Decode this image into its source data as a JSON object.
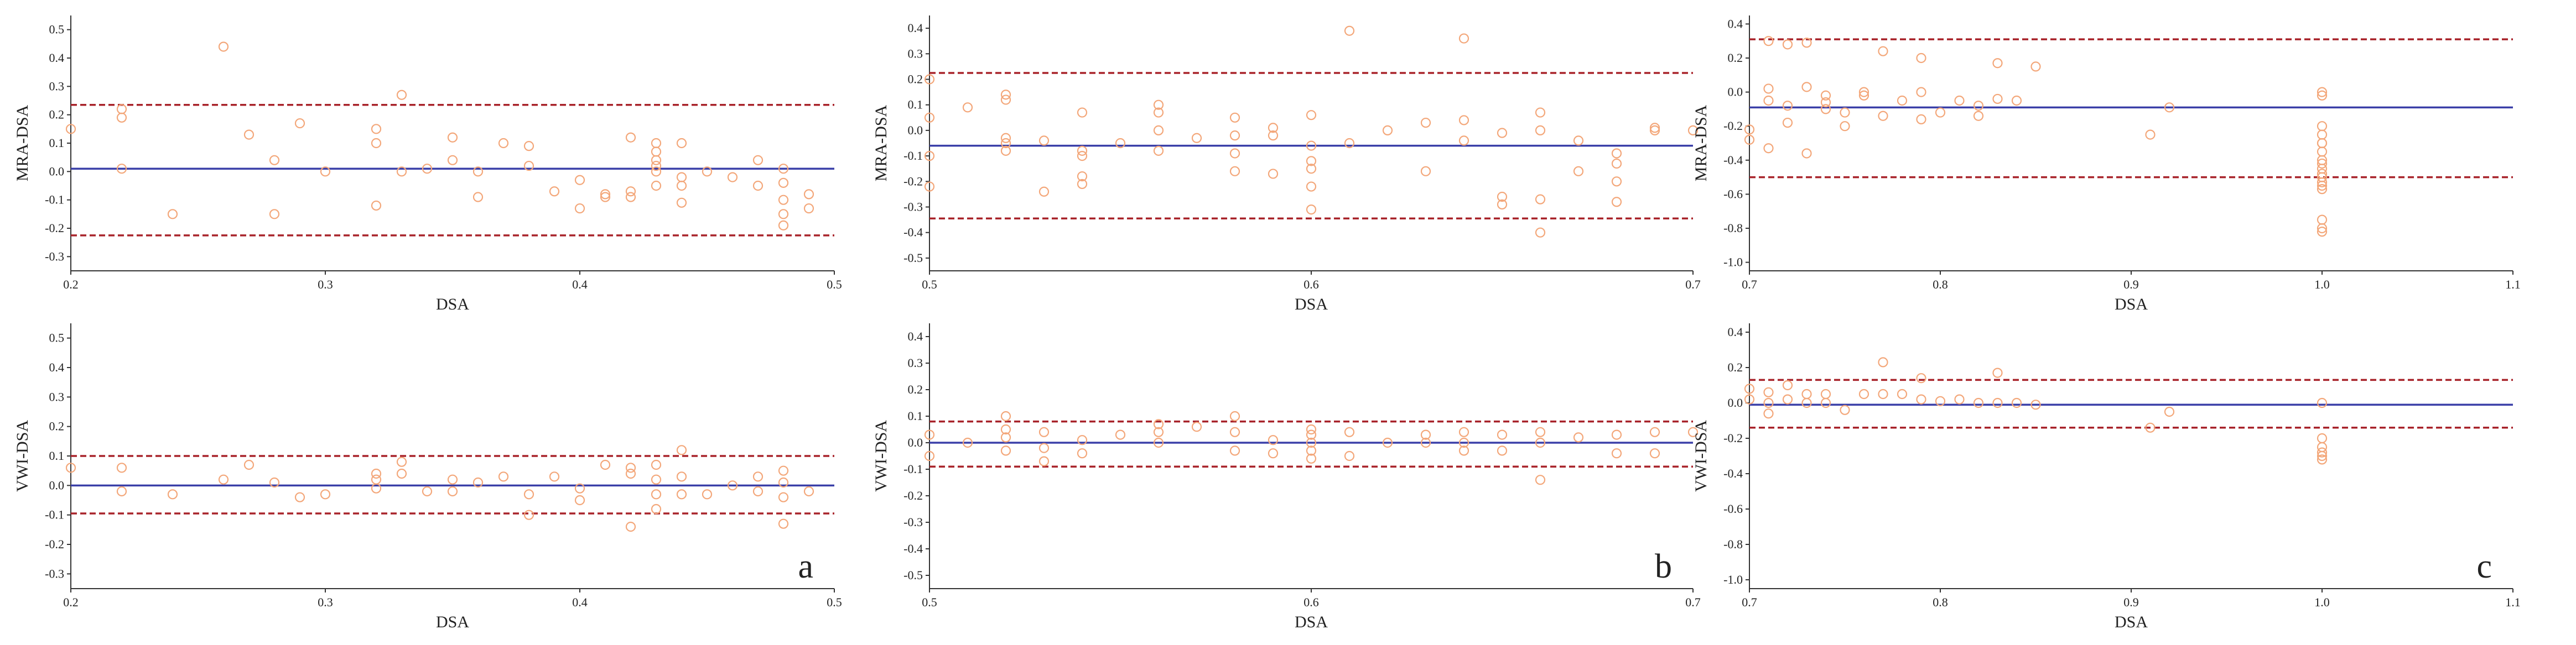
{
  "colors": {
    "mean_line": "#3a3fa8",
    "limit_line": "#a8232a",
    "point": "#f3a77a",
    "axis": "#333333"
  },
  "chart_data": [
    {
      "id": "a-top",
      "type": "scatter",
      "panel_label": "",
      "xlabel": "DSA",
      "ylabel": "MRA-DSA",
      "xlim": [
        0.2,
        0.5
      ],
      "ylim": [
        -0.35,
        0.55
      ],
      "x_ticks": [
        0.2,
        0.3,
        0.4,
        0.5
      ],
      "x_tick_labels": [
        "0.2",
        "0.3",
        "0.4",
        "0.5"
      ],
      "y_ticks": [
        -0.3,
        -0.2,
        -0.1,
        0.0,
        0.1,
        0.2,
        0.3,
        0.4,
        0.5
      ],
      "y_tick_labels": [
        "-0.3",
        "-0.2",
        "-0.1",
        "0.0",
        "0.1",
        "0.2",
        "0.3",
        "0.4",
        "0.5"
      ],
      "mean": 0.01,
      "upper_limit": 0.235,
      "lower_limit": -0.225,
      "x": [
        0.2,
        0.22,
        0.22,
        0.22,
        0.24,
        0.26,
        0.27,
        0.28,
        0.28,
        0.29,
        0.3,
        0.32,
        0.32,
        0.32,
        0.33,
        0.33,
        0.34,
        0.35,
        0.35,
        0.36,
        0.36,
        0.37,
        0.38,
        0.38,
        0.39,
        0.4,
        0.4,
        0.41,
        0.41,
        0.42,
        0.42,
        0.42,
        0.43,
        0.43,
        0.43,
        0.43,
        0.43,
        0.43,
        0.44,
        0.44,
        0.44,
        0.44,
        0.45,
        0.46,
        0.47,
        0.47,
        0.48,
        0.48,
        0.48,
        0.48,
        0.48,
        0.49,
        0.49
      ],
      "y": [
        0.15,
        0.19,
        0.22,
        0.01,
        -0.15,
        0.44,
        0.13,
        0.04,
        -0.15,
        0.17,
        0.0,
        0.15,
        0.1,
        -0.12,
        0.27,
        0.0,
        0.01,
        0.12,
        0.04,
        0.0,
        -0.09,
        0.1,
        0.09,
        0.02,
        -0.07,
        -0.03,
        -0.13,
        -0.09,
        -0.08,
        0.12,
        -0.07,
        -0.09,
        0.1,
        0.07,
        0.04,
        0.02,
        0.0,
        -0.05,
        0.1,
        -0.02,
        -0.05,
        -0.11,
        0.0,
        -0.02,
        0.04,
        -0.05,
        0.01,
        -0.04,
        -0.1,
        -0.15,
        -0.19,
        -0.08,
        -0.13
      ]
    },
    {
      "id": "b-top",
      "type": "scatter",
      "panel_label": "",
      "xlabel": "DSA",
      "ylabel": "MRA-DSA",
      "xlim": [
        0.5,
        0.7
      ],
      "ylim": [
        -0.55,
        0.45
      ],
      "x_ticks": [
        0.5,
        0.6,
        0.7
      ],
      "x_tick_labels": [
        "0.5",
        "0.6",
        "0.7"
      ],
      "y_ticks": [
        -0.5,
        -0.4,
        -0.3,
        -0.2,
        -0.1,
        0.0,
        0.1,
        0.2,
        0.3,
        0.4
      ],
      "y_tick_labels": [
        "-0.5",
        "-0.4",
        "-0.3",
        "-0.2",
        "-0.1",
        "0.0",
        "0.1",
        "0.2",
        "0.3",
        "0.4"
      ],
      "mean": -0.06,
      "upper_limit": 0.225,
      "lower_limit": -0.345,
      "x": [
        0.5,
        0.5,
        0.5,
        0.5,
        0.51,
        0.52,
        0.52,
        0.52,
        0.52,
        0.52,
        0.53,
        0.53,
        0.54,
        0.54,
        0.54,
        0.54,
        0.54,
        0.55,
        0.56,
        0.56,
        0.56,
        0.56,
        0.57,
        0.58,
        0.58,
        0.58,
        0.58,
        0.59,
        0.59,
        0.59,
        0.6,
        0.6,
        0.6,
        0.6,
        0.6,
        0.6,
        0.61,
        0.61,
        0.62,
        0.63,
        0.63,
        0.64,
        0.64,
        0.64,
        0.65,
        0.65,
        0.65,
        0.66,
        0.66,
        0.66,
        0.66,
        0.67,
        0.67,
        0.68,
        0.68,
        0.68,
        0.68,
        0.69,
        0.69,
        0.7
      ],
      "y": [
        0.2,
        0.05,
        -0.1,
        -0.22,
        0.09,
        0.14,
        0.12,
        -0.03,
        -0.05,
        -0.08,
        -0.04,
        -0.24,
        0.07,
        -0.08,
        -0.1,
        -0.18,
        -0.21,
        -0.05,
        0.1,
        0.07,
        0.0,
        -0.08,
        -0.03,
        0.05,
        -0.02,
        -0.09,
        -0.16,
        0.01,
        -0.02,
        -0.17,
        0.06,
        -0.06,
        -0.12,
        -0.15,
        -0.22,
        -0.31,
        0.39,
        -0.05,
        0.0,
        0.03,
        -0.16,
        0.36,
        0.04,
        -0.04,
        -0.01,
        -0.26,
        -0.29,
        0.07,
        0.0,
        -0.27,
        -0.4,
        -0.04,
        -0.16,
        -0.09,
        -0.2,
        -0.28,
        -0.13,
        0.01,
        0.0,
        0.0
      ]
    },
    {
      "id": "c-top",
      "type": "scatter",
      "panel_label": "",
      "xlabel": "DSA",
      "ylabel": "MRA-DSA",
      "xlim": [
        0.7,
        1.1
      ],
      "ylim": [
        -1.05,
        0.45
      ],
      "x_ticks": [
        0.7,
        0.8,
        0.9,
        1.0,
        1.1
      ],
      "x_tick_labels": [
        "0.7",
        "0.8",
        "0.9",
        "1.0",
        "1.1"
      ],
      "y_ticks": [
        -1.0,
        -0.8,
        -0.6,
        -0.4,
        -0.2,
        0.0,
        0.2,
        0.4
      ],
      "y_tick_labels": [
        "-1.0",
        "-0.8",
        "-0.6",
        "-0.4",
        "-0.2",
        "0.0",
        "0.2",
        "0.4"
      ],
      "mean": -0.09,
      "upper_limit": 0.31,
      "lower_limit": -0.5,
      "x": [
        0.7,
        0.7,
        0.71,
        0.71,
        0.71,
        0.71,
        0.72,
        0.72,
        0.72,
        0.73,
        0.73,
        0.73,
        0.74,
        0.74,
        0.74,
        0.75,
        0.75,
        0.76,
        0.76,
        0.77,
        0.77,
        0.78,
        0.79,
        0.79,
        0.79,
        0.8,
        0.81,
        0.82,
        0.82,
        0.83,
        0.83,
        0.84,
        0.85,
        0.91,
        0.92,
        1.0,
        1.0,
        1.0,
        1.0,
        1.0,
        1.0,
        1.0,
        1.0,
        1.0,
        1.0,
        1.0,
        1.0,
        1.0,
        1.0,
        1.0,
        1.0,
        1.0,
        1.0
      ],
      "y": [
        -0.22,
        -0.28,
        0.3,
        0.02,
        -0.05,
        -0.33,
        0.28,
        -0.08,
        -0.18,
        0.29,
        0.03,
        -0.36,
        -0.02,
        -0.06,
        -0.1,
        -0.12,
        -0.2,
        0.0,
        -0.02,
        0.24,
        -0.14,
        -0.05,
        0.2,
        0.0,
        -0.16,
        -0.12,
        -0.05,
        -0.08,
        -0.14,
        0.17,
        -0.04,
        -0.05,
        0.15,
        -0.25,
        -0.09,
        0.0,
        -0.02,
        -0.2,
        -0.25,
        -0.3,
        -0.35,
        -0.4,
        -0.45,
        -0.5,
        -0.53,
        -0.57,
        -0.3,
        -0.42,
        -0.48,
        -0.75,
        -0.8,
        -0.82,
        -0.55
      ]
    },
    {
      "id": "a-bottom",
      "type": "scatter",
      "panel_label": "a",
      "xlabel": "DSA",
      "ylabel": "VWI-DSA",
      "xlim": [
        0.2,
        0.5
      ],
      "ylim": [
        -0.35,
        0.55
      ],
      "x_ticks": [
        0.2,
        0.3,
        0.4,
        0.5
      ],
      "x_tick_labels": [
        "0.2",
        "0.3",
        "0.4",
        "0.5"
      ],
      "y_ticks": [
        -0.3,
        -0.2,
        -0.1,
        0.0,
        0.1,
        0.2,
        0.3,
        0.4,
        0.5
      ],
      "y_tick_labels": [
        "-0.3",
        "-0.2",
        "-0.1",
        "0.0",
        "0.1",
        "0.2",
        "0.3",
        "0.4",
        "0.5"
      ],
      "mean": 0.0,
      "upper_limit": 0.1,
      "lower_limit": -0.095,
      "x": [
        0.2,
        0.22,
        0.22,
        0.24,
        0.26,
        0.27,
        0.28,
        0.29,
        0.3,
        0.32,
        0.32,
        0.32,
        0.33,
        0.33,
        0.34,
        0.35,
        0.35,
        0.36,
        0.37,
        0.38,
        0.38,
        0.39,
        0.4,
        0.4,
        0.41,
        0.42,
        0.42,
        0.42,
        0.43,
        0.43,
        0.43,
        0.43,
        0.44,
        0.44,
        0.44,
        0.45,
        0.46,
        0.47,
        0.47,
        0.48,
        0.48,
        0.48,
        0.48,
        0.49
      ],
      "y": [
        0.06,
        0.06,
        -0.02,
        -0.03,
        0.02,
        0.07,
        0.01,
        -0.04,
        -0.03,
        0.04,
        0.02,
        -0.01,
        0.08,
        0.04,
        -0.02,
        0.02,
        -0.02,
        0.01,
        0.03,
        -0.03,
        -0.1,
        0.03,
        -0.01,
        -0.05,
        0.07,
        0.06,
        0.04,
        -0.14,
        0.07,
        0.02,
        -0.03,
        -0.08,
        0.12,
        0.03,
        -0.03,
        -0.03,
        0.0,
        0.03,
        -0.02,
        0.05,
        0.01,
        -0.04,
        -0.13,
        -0.02
      ]
    },
    {
      "id": "b-bottom",
      "type": "scatter",
      "panel_label": "b",
      "xlabel": "DSA",
      "ylabel": "VWI-DSA",
      "xlim": [
        0.5,
        0.7
      ],
      "ylim": [
        -0.55,
        0.45
      ],
      "x_ticks": [
        0.5,
        0.6,
        0.7
      ],
      "x_tick_labels": [
        "0.5",
        "0.6",
        "0.7"
      ],
      "y_ticks": [
        -0.5,
        -0.4,
        -0.3,
        -0.2,
        -0.1,
        0.0,
        0.1,
        0.2,
        0.3,
        0.4
      ],
      "y_tick_labels": [
        "-0.5",
        "-0.4",
        "-0.3",
        "-0.2",
        "-0.1",
        "0.0",
        "0.1",
        "0.2",
        "0.3",
        "0.4"
      ],
      "mean": 0.0,
      "upper_limit": 0.08,
      "lower_limit": -0.09,
      "x": [
        0.5,
        0.5,
        0.51,
        0.52,
        0.52,
        0.52,
        0.52,
        0.53,
        0.53,
        0.53,
        0.54,
        0.54,
        0.55,
        0.56,
        0.56,
        0.56,
        0.57,
        0.58,
        0.58,
        0.58,
        0.59,
        0.59,
        0.6,
        0.6,
        0.6,
        0.6,
        0.6,
        0.61,
        0.61,
        0.62,
        0.63,
        0.63,
        0.64,
        0.64,
        0.64,
        0.65,
        0.65,
        0.66,
        0.66,
        0.66,
        0.67,
        0.68,
        0.68,
        0.69,
        0.69,
        0.7
      ],
      "y": [
        0.03,
        -0.05,
        0.0,
        0.1,
        0.05,
        0.02,
        -0.03,
        0.04,
        -0.02,
        -0.07,
        0.01,
        -0.04,
        0.03,
        0.07,
        0.04,
        0.0,
        0.06,
        0.1,
        0.04,
        -0.03,
        0.01,
        -0.04,
        0.05,
        0.03,
        0.0,
        -0.03,
        -0.06,
        0.04,
        -0.05,
        0.0,
        0.03,
        0.0,
        0.04,
        0.0,
        -0.03,
        0.03,
        -0.03,
        0.04,
        0.0,
        -0.14,
        0.02,
        0.03,
        -0.04,
        0.04,
        -0.04,
        0.04
      ]
    },
    {
      "id": "c-bottom",
      "type": "scatter",
      "panel_label": "c",
      "xlabel": "DSA",
      "ylabel": "VWI-DSA",
      "xlim": [
        0.7,
        1.1
      ],
      "ylim": [
        -1.05,
        0.45
      ],
      "x_ticks": [
        0.7,
        0.8,
        0.9,
        1.0,
        1.1
      ],
      "x_tick_labels": [
        "0.7",
        "0.8",
        "0.9",
        "1.0",
        "1.1"
      ],
      "y_ticks": [
        -1.0,
        -0.8,
        -0.6,
        -0.4,
        -0.2,
        0.0,
        0.2,
        0.4
      ],
      "y_tick_labels": [
        "-1.0",
        "-0.8",
        "-0.6",
        "-0.4",
        "-0.2",
        "0.0",
        "0.2",
        "0.4"
      ],
      "mean": -0.01,
      "upper_limit": 0.13,
      "lower_limit": -0.14,
      "x": [
        0.7,
        0.7,
        0.71,
        0.71,
        0.71,
        0.72,
        0.72,
        0.73,
        0.73,
        0.74,
        0.74,
        0.75,
        0.76,
        0.77,
        0.77,
        0.78,
        0.79,
        0.79,
        0.8,
        0.81,
        0.82,
        0.83,
        0.83,
        0.84,
        0.85,
        0.91,
        0.92,
        1.0,
        1.0,
        1.0,
        1.0,
        1.0,
        1.0
      ],
      "y": [
        0.08,
        0.02,
        0.06,
        0.0,
        -0.06,
        0.1,
        0.02,
        0.05,
        0.0,
        0.05,
        0.0,
        -0.04,
        0.05,
        0.23,
        0.05,
        0.05,
        0.14,
        0.02,
        0.01,
        0.02,
        0.0,
        0.17,
        0.0,
        0.0,
        -0.01,
        -0.14,
        -0.05,
        0.0,
        -0.2,
        -0.25,
        -0.28,
        -0.3,
        -0.32
      ]
    }
  ]
}
